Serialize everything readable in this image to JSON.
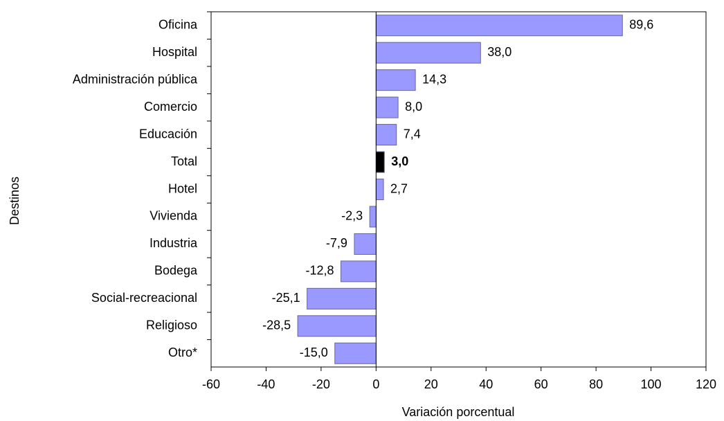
{
  "chart_data": {
    "type": "hbar",
    "x_label": "Variación porcentual",
    "y_label": "Destinos",
    "categories": [
      "Oficina",
      "Hospital",
      "Administración pública",
      "Comercio",
      "Educación",
      "Total",
      "Hotel",
      "Vivienda",
      "Industria",
      "Bodega",
      "Social-recreacional",
      "Religioso",
      "Otro*"
    ],
    "values": [
      89.6,
      38.0,
      14.3,
      8.0,
      7.4,
      3.0,
      2.7,
      -2.3,
      -7.9,
      -12.8,
      -25.1,
      -28.5,
      -15.0
    ],
    "value_labels": [
      "89,6",
      "38,0",
      "14,3",
      "8,0",
      "7,4",
      "3,0",
      "2,7",
      "-2,3",
      "-7,9",
      "-12,8",
      "-25,1",
      "-28,5",
      "-15,0"
    ],
    "colors": [
      "#9999ff",
      "#9999ff",
      "#9999ff",
      "#9999ff",
      "#9999ff",
      "#000000",
      "#9999ff",
      "#9999ff",
      "#9999ff",
      "#9999ff",
      "#9999ff",
      "#9999ff",
      "#9999ff"
    ],
    "label_weights": [
      "normal",
      "normal",
      "normal",
      "normal",
      "normal",
      "bold",
      "normal",
      "normal",
      "normal",
      "normal",
      "normal",
      "normal",
      "normal"
    ],
    "xlim": [
      -60,
      120
    ],
    "xticks": [
      -60,
      -40,
      -20,
      0,
      20,
      40,
      60,
      80,
      100,
      120
    ],
    "grid": false
  }
}
